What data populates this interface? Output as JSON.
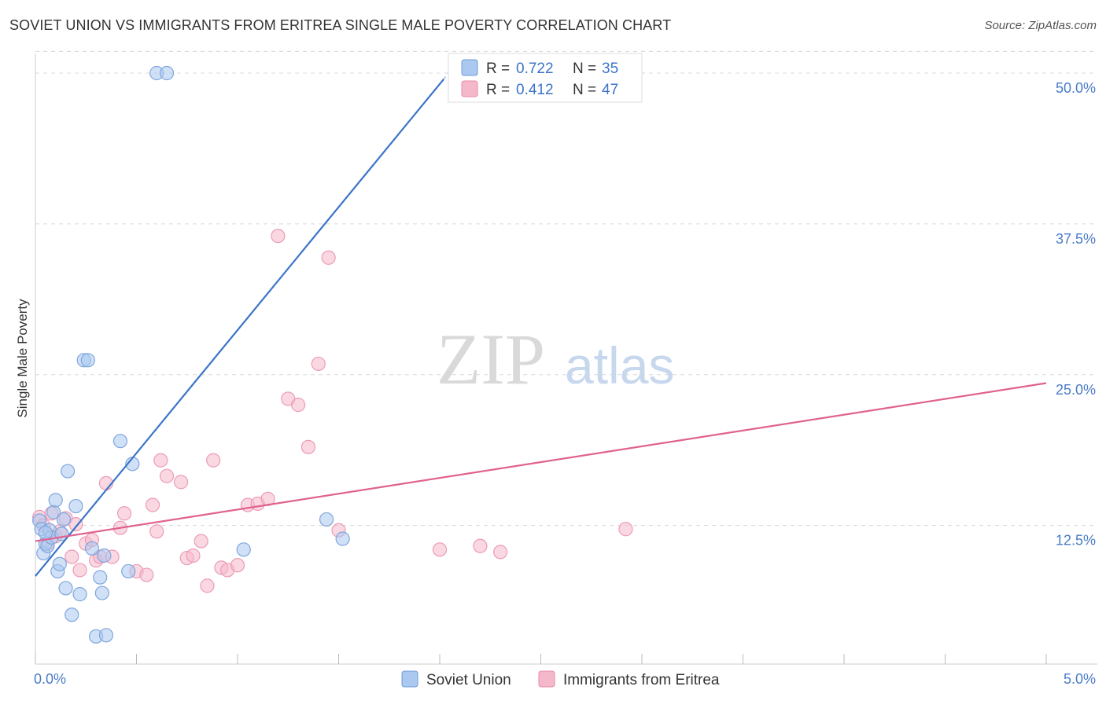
{
  "title": "SOVIET UNION VS IMMIGRANTS FROM ERITREA SINGLE MALE POVERTY CORRELATION CHART",
  "source": "Source: ZipAtlas.com",
  "colors": {
    "blue": "#3b74c8",
    "blue_fill": "#aac8f0",
    "pink": "#e0628e",
    "pink_fill": "#f5b8cb",
    "axis_text": "#4a7cc7",
    "grid": "#d8d8d8"
  },
  "chart_data": {
    "type": "scatter",
    "title": "SOVIET UNION VS IMMIGRANTS FROM ERITREA SINGLE MALE POVERTY CORRELATION CHART",
    "xlabel": "",
    "ylabel": "Single Male Poverty",
    "xlim": [
      0,
      5.0
    ],
    "ylim": [
      0,
      52
    ],
    "x_tick_labels": [
      "0.0%",
      "5.0%"
    ],
    "y_ticks": [
      12.5,
      25.0,
      37.5,
      50.0
    ],
    "y_tick_labels": [
      "12.5%",
      "25.0%",
      "37.5%",
      "50.0%"
    ],
    "watermark": {
      "zip": "ZIP",
      "atlas": "atlas"
    },
    "legend": [
      {
        "label": "R = ",
        "r": "0.722",
        "n_label": "N = ",
        "n": "35",
        "color": "blue"
      },
      {
        "label": "R = ",
        "r": "0.412",
        "n_label": "N = ",
        "n": "47",
        "color": "pink"
      }
    ],
    "series": [
      {
        "name": "Soviet Union",
        "color": "blue",
        "trend": {
          "x1": 0.0,
          "y1": 8.3,
          "x2": 2.02,
          "y2": 49.5
        },
        "x": [
          0.02,
          0.03,
          0.04,
          0.05,
          0.06,
          0.07,
          0.08,
          0.09,
          0.1,
          0.11,
          0.12,
          0.13,
          0.14,
          0.15,
          0.16,
          0.18,
          0.2,
          0.22,
          0.24,
          0.26,
          0.28,
          0.3,
          0.32,
          0.33,
          0.34,
          0.35,
          0.42,
          0.46,
          0.48,
          0.6,
          0.65,
          1.03,
          1.44,
          1.52,
          0.05
        ],
        "y": [
          12.9,
          12.2,
          10.2,
          11.0,
          10.8,
          12.1,
          11.5,
          13.6,
          14.6,
          8.7,
          9.3,
          11.8,
          13.0,
          7.3,
          17.0,
          5.1,
          14.1,
          6.8,
          26.2,
          26.2,
          10.6,
          3.3,
          8.2,
          6.9,
          10.0,
          3.4,
          19.5,
          8.7,
          17.6,
          50.0,
          50.0,
          10.5,
          13.0,
          11.4,
          11.9
        ]
      },
      {
        "name": "Immigrants from Eritrea",
        "color": "pink",
        "trend": {
          "x1": 0.0,
          "y1": 11.2,
          "x2": 5.0,
          "y2": 24.3
        },
        "x": [
          0.02,
          0.04,
          0.06,
          0.08,
          0.1,
          0.12,
          0.15,
          0.18,
          0.2,
          0.22,
          0.25,
          0.28,
          0.3,
          0.32,
          0.35,
          0.38,
          0.42,
          0.44,
          0.5,
          0.55,
          0.58,
          0.6,
          0.62,
          0.65,
          0.72,
          0.75,
          0.78,
          0.82,
          0.85,
          0.88,
          0.92,
          0.95,
          1.0,
          1.05,
          1.1,
          1.15,
          1.2,
          1.25,
          1.3,
          1.35,
          1.4,
          1.45,
          1.5,
          2.0,
          2.2,
          2.3,
          2.92
        ],
        "y": [
          13.2,
          12.5,
          11.0,
          13.5,
          11.6,
          12.0,
          13.1,
          9.9,
          12.6,
          8.8,
          11.0,
          11.3,
          9.6,
          9.9,
          16.0,
          9.9,
          12.3,
          13.5,
          8.7,
          8.4,
          14.2,
          12.0,
          17.9,
          16.6,
          16.1,
          9.8,
          10.0,
          11.2,
          7.5,
          17.9,
          9.0,
          8.8,
          9.2,
          14.2,
          14.3,
          14.7,
          36.5,
          23.0,
          22.5,
          19.0,
          25.9,
          34.7,
          12.1,
          10.5,
          10.8,
          10.3,
          12.2
        ]
      }
    ]
  }
}
